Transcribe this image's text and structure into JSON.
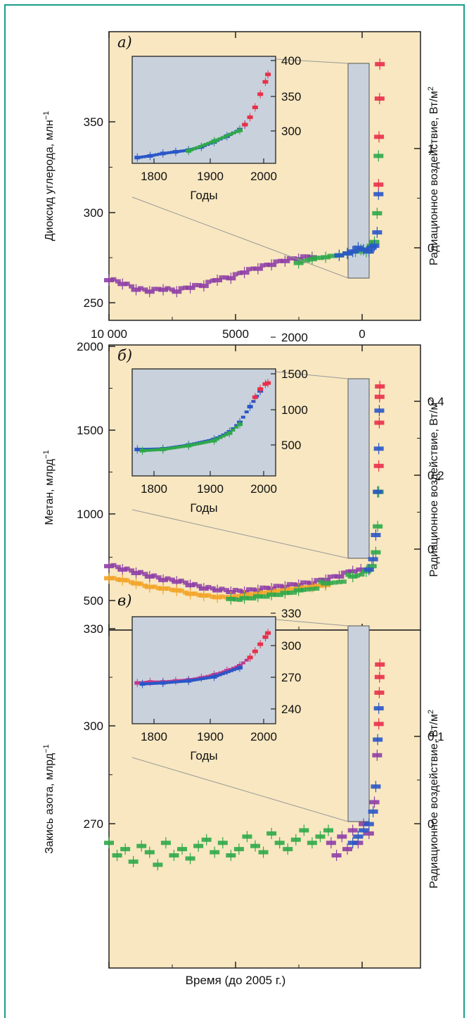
{
  "colors": {
    "frame": "#1a9e8a",
    "plot_bg": "#f8e7c0",
    "inset_bg": "#c9d2dc",
    "purple": "#8e3fa6",
    "green": "#2fa84a",
    "blue": "#2a56c8",
    "red": "#e8304a",
    "orange": "#f2a428",
    "magenta": "#c2398f",
    "cyan": "#36b8d6"
  },
  "xlabel": "Время (до 2005 г.)",
  "chart_data": [
    {
      "type": "scatter",
      "panel_label": "а)",
      "ylabel": "Диоксид углерода, млн",
      "ylabel_sup": "−1",
      "y2label": "Радиационное воздействие, Вт/м",
      "y2label_sup": "2",
      "xlim": [
        10000,
        -1500
      ],
      "xticks": [
        "10 000",
        "5000",
        "0"
      ],
      "ylim": [
        244,
        395
      ],
      "yticks": [
        "250",
        "300",
        "350"
      ],
      "y2ticks": [
        "0",
        "1"
      ],
      "inset": {
        "xlabel": "Годы",
        "xticks": [
          "1800",
          "1900",
          "2000"
        ],
        "yticks": [
          "300",
          "350",
          "400"
        ],
        "xlim": [
          1740,
          2020
        ],
        "ylim": [
          270,
          400
        ]
      },
      "series": [
        {
          "color": "purple",
          "x": [
            10000,
            9500,
            9000,
            8500,
            8000,
            7500,
            7000,
            6500,
            6000,
            5500,
            5000,
            4500,
            4000,
            3500,
            3000,
            2500
          ],
          "y": [
            265,
            263,
            260,
            259,
            260,
            259,
            261,
            262,
            265,
            266,
            269,
            271,
            273,
            275,
            276,
            277
          ]
        },
        {
          "color": "green",
          "x": [
            3000,
            2500,
            2000,
            1500,
            1200,
            900,
            700,
            500,
            300,
            200,
            100,
            50
          ],
          "y": [
            274,
            276,
            277,
            278,
            279,
            280,
            281,
            280,
            283,
            285,
            300,
            330
          ]
        },
        {
          "color": "blue",
          "x": [
            1500,
            1200,
            1000,
            800,
            600,
            400,
            300,
            200,
            100,
            50
          ],
          "y": [
            278,
            279,
            280,
            282,
            281,
            280,
            282,
            283,
            290,
            310
          ]
        },
        {
          "color": "red",
          "x": [
            50,
            30,
            10,
            0
          ],
          "y": [
            315,
            340,
            360,
            378
          ]
        }
      ],
      "inset_series": [
        {
          "color": "blue",
          "x": [
            1750,
            1775,
            1800,
            1825,
            1850,
            1875,
            1900,
            1925,
            1950,
            1960
          ],
          "y": [
            277,
            279,
            282,
            284,
            286,
            290,
            296,
            303,
            311,
            317
          ]
        },
        {
          "color": "green",
          "x": [
            1850,
            1900,
            1950
          ],
          "y": [
            285,
            297,
            310
          ]
        },
        {
          "color": "red",
          "x": [
            1960,
            1970,
            1980,
            1990,
            2000,
            2005
          ],
          "y": [
            317,
            326,
            338,
            354,
            369,
            378
          ]
        }
      ]
    },
    {
      "type": "scatter",
      "panel_label": "б)",
      "ylabel": "Метан, млрд",
      "ylabel_sup": "−1",
      "y2label": "Радиационное воздействие, Вт/м",
      "y2label_sup": "2",
      "xlim": [
        10000,
        -1500
      ],
      "xticks": [],
      "ylim": [
        350,
        2000
      ],
      "yticks": [
        "500",
        "1000",
        "1500",
        "2000"
      ],
      "y2ticks": [
        "0",
        "0,2",
        "0,4"
      ],
      "inset": {
        "xlabel": "Годы",
        "xticks": [
          "1800",
          "1900",
          "2000"
        ],
        "yticks": [
          "500",
          "1000",
          "1500",
          "2000"
        ],
        "xlim": [
          1740,
          2020
        ],
        "ylim": [
          300,
          2000
        ]
      },
      "series": [
        {
          "color": "purple",
          "x": [
            10000,
            9500,
            9000,
            8500,
            8000,
            7500,
            7000,
            6500,
            6000,
            5500,
            5000,
            4500,
            4000,
            3500,
            3000,
            2500,
            2000,
            1500,
            1000,
            700
          ],
          "y": [
            720,
            700,
            680,
            660,
            640,
            630,
            610,
            590,
            580,
            570,
            570,
            580,
            590,
            600,
            610,
            620,
            640,
            660,
            690,
            700
          ]
        },
        {
          "color": "orange",
          "x": [
            10000,
            9500,
            9000,
            8500,
            8000,
            7500,
            7000,
            6500,
            6000,
            5500,
            5000,
            4500,
            4000,
            3500,
            3000,
            2500,
            2000
          ],
          "y": [
            650,
            640,
            620,
            600,
            590,
            580,
            560,
            550,
            540,
            540,
            550,
            560,
            570,
            580,
            590,
            600,
            610
          ]
        },
        {
          "color": "green",
          "x": [
            5500,
            5000,
            4500,
            4000,
            3500,
            3000,
            2000,
            1000,
            500,
            300,
            150,
            80,
            40
          ],
          "y": [
            530,
            535,
            545,
            555,
            565,
            580,
            620,
            660,
            690,
            720,
            800,
            950,
            1150
          ]
        },
        {
          "color": "blue",
          "x": [
            400,
            250,
            150,
            80,
            40,
            20
          ],
          "y": [
            700,
            760,
            900,
            1150,
            1400,
            1620
          ]
        },
        {
          "color": "red",
          "x": [
            40,
            20,
            10,
            0
          ],
          "y": [
            1300,
            1550,
            1700,
            1760
          ]
        }
      ],
      "inset_series": [
        {
          "color": "blue",
          "x": [
            1750,
            1800,
            1850,
            1900,
            1930,
            1950,
            1970,
            1990
          ],
          "y": [
            720,
            730,
            790,
            880,
            1000,
            1150,
            1400,
            1650
          ]
        },
        {
          "color": "green",
          "x": [
            1760,
            1800,
            1850,
            1900,
            1930,
            1950
          ],
          "y": [
            700,
            720,
            780,
            860,
            980,
            1120
          ]
        },
        {
          "color": "red",
          "x": [
            1980,
            1990,
            2000,
            2005
          ],
          "y": [
            1550,
            1680,
            1760,
            1775
          ]
        }
      ]
    },
    {
      "type": "scatter",
      "panel_label": "в)",
      "ylabel": "Закись азота, млрд",
      "ylabel_sup": "−1",
      "y2label": "Радиационное воздействие, Вт/м",
      "y2label_sup": "2",
      "xlim": [
        10000,
        -1500
      ],
      "xticks": [],
      "ylim": [
        222,
        330
      ],
      "yticks": [
        "270",
        "300",
        "330"
      ],
      "y2ticks": [
        "0",
        "0,1"
      ],
      "inset": {
        "xlabel": "Годы",
        "xticks": [
          "1800",
          "1900",
          "2000"
        ],
        "yticks": [
          "240",
          "270",
          "300",
          "330"
        ],
        "xlim": [
          1740,
          2020
        ],
        "ylim": [
          230,
          335
        ]
      },
      "series": [
        {
          "color": "green",
          "x": [
            10000,
            9700,
            9400,
            9100,
            8800,
            8500,
            8200,
            7900,
            7600,
            7300,
            7000,
            6700,
            6400,
            6100,
            5800,
            5500,
            5200,
            4900,
            4600,
            4300,
            4000,
            3700,
            3400,
            3100,
            2800,
            2500,
            2200,
            1900
          ],
          "y": [
            262,
            258,
            260,
            256,
            261,
            259,
            255,
            262,
            258,
            260,
            257,
            261,
            263,
            259,
            262,
            258,
            260,
            264,
            261,
            259,
            265,
            262,
            260,
            263,
            266,
            262,
            264,
            266
          ]
        },
        {
          "color": "purple",
          "x": [
            1800,
            1600,
            1400,
            1200,
            1000,
            800,
            600,
            400,
            200,
            100
          ],
          "y": [
            262,
            258,
            264,
            260,
            266,
            262,
            268,
            265,
            275,
            290
          ]
        },
        {
          "color": "blue",
          "x": [
            1000,
            800,
            600,
            400,
            250,
            150,
            80,
            40
          ],
          "y": [
            262,
            264,
            266,
            268,
            272,
            280,
            295,
            305
          ]
        },
        {
          "color": "red",
          "x": [
            40,
            20,
            10,
            0
          ],
          "y": [
            300,
            310,
            315,
            319
          ]
        }
      ],
      "inset_series": [
        {
          "color": "magenta",
          "x": [
            1750,
            1775,
            1800,
            1825,
            1850,
            1875,
            1900,
            1925,
            1950,
            1970
          ],
          "y": [
            270,
            271,
            271,
            272,
            273,
            275,
            278,
            282,
            287,
            295
          ]
        },
        {
          "color": "blue",
          "x": [
            1760,
            1800,
            1850,
            1900,
            1950
          ],
          "y": [
            269,
            270,
            272,
            276,
            285
          ]
        },
        {
          "color": "red",
          "x": [
            1970,
            1980,
            1990,
            2000,
            2005
          ],
          "y": [
            295,
            301,
            308,
            315,
            319
          ]
        }
      ]
    }
  ]
}
